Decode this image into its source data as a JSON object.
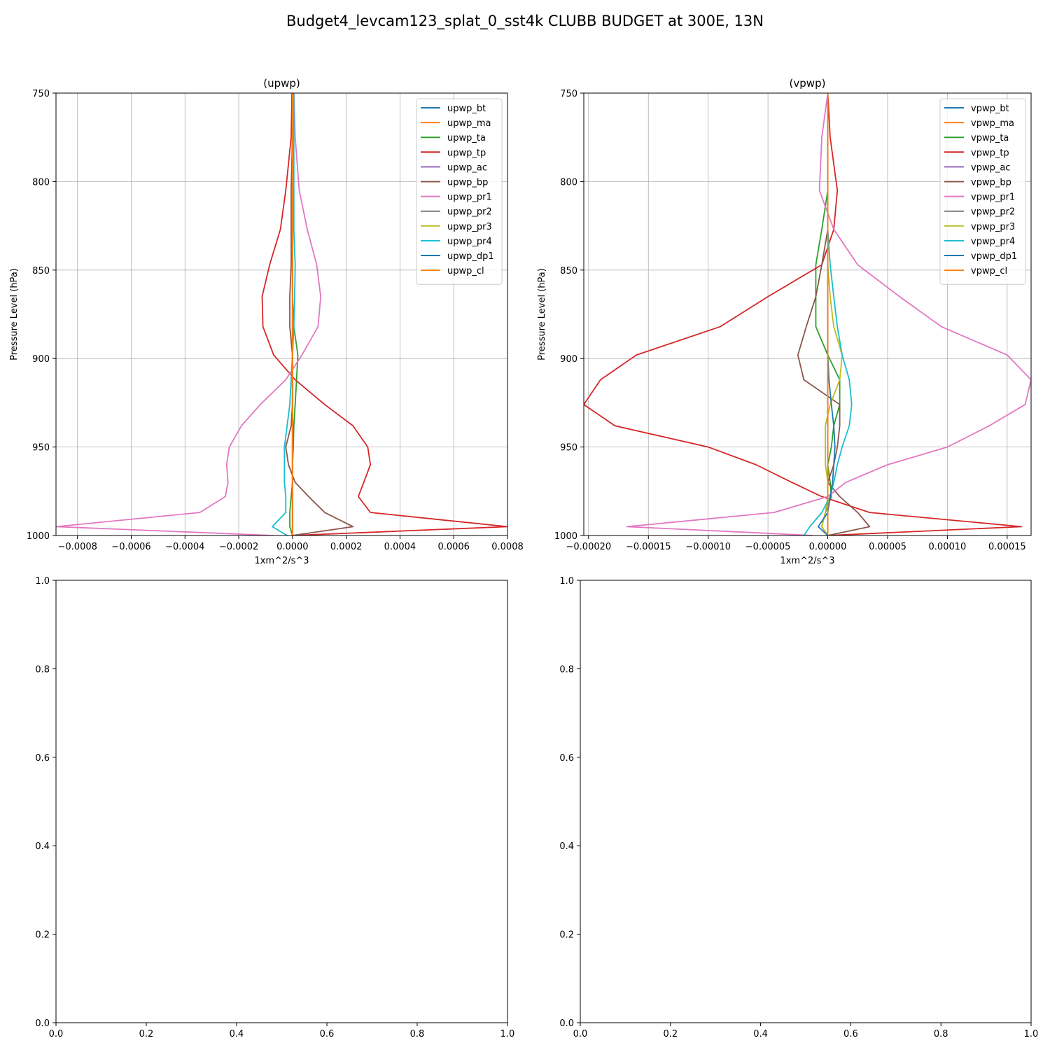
{
  "figure_title": "Budget4_levcam123_splat_0_sst4k CLUBB BUDGET at 300E, 13N",
  "colors": {
    "bt": "#1f77b4",
    "ma": "#ff7f0e",
    "ta": "#2ca02c",
    "tp": "#d62728",
    "ac": "#9467bd",
    "bp": "#8c564b",
    "pr1": "#e377c2",
    "pr2": "#7f7f7f",
    "pr3": "#bcbd22",
    "pr4": "#17becf",
    "dp1": "#1f77b4",
    "cl": "#ff7f0e"
  },
  "chart_data": [
    {
      "type": "line",
      "title": "(upwp)",
      "xlabel": "1xm^2/s^3",
      "ylabel": "Pressure Level (hPa)",
      "xlim": [
        -0.00088,
        0.0008
      ],
      "ylim": [
        1000,
        750
      ],
      "y_inverted": true,
      "grid": true,
      "legend": "top-right",
      "xticks": [
        -0.0008,
        -0.0006,
        -0.0004,
        -0.0002,
        0,
        0.0002,
        0.0004,
        0.0006,
        0.0008
      ],
      "xtick_labels": [
        "−0.0008",
        "−0.0006",
        "−0.0004",
        "−0.0002",
        "0.0000",
        "0.0002",
        "0.0004",
        "0.0006",
        "0.0008"
      ],
      "yticks": [
        750,
        800,
        850,
        900,
        950,
        1000
      ],
      "ytick_labels": [
        "750",
        "800",
        "850",
        "900",
        "950",
        "1000"
      ],
      "levels": [
        750,
        775,
        805,
        827,
        847,
        865,
        882,
        898,
        912,
        926,
        938,
        950,
        960,
        970,
        978,
        987,
        995,
        1000
      ],
      "series": [
        {
          "name": "upwp_bt",
          "color_key": "bt",
          "values": [
            0,
            0,
            0,
            0,
            0,
            0,
            0,
            0,
            0,
            0,
            0,
            0,
            0,
            0,
            0,
            0,
            0,
            0
          ]
        },
        {
          "name": "upwp_ma",
          "color_key": "ma",
          "values": [
            0,
            0,
            0,
            0,
            0,
            0,
            0,
            0,
            0,
            0,
            0,
            0,
            0,
            0,
            0,
            0,
            0,
            0
          ]
        },
        {
          "name": "upwp_ta",
          "color_key": "ta",
          "values": [
            0,
            0,
            0,
            0,
            0,
            0,
            5e-06,
            2e-05,
            1.5e-05,
            1e-05,
            5e-06,
            3e-06,
            0,
            0,
            -5e-06,
            -1e-05,
            -1e-05,
            0
          ]
        },
        {
          "name": "upwp_tp",
          "color_key": "tp",
          "values": [
            -2e-06,
            -5e-06,
            -2.5e-05,
            -4.5e-05,
            -8.5e-05,
            -0.000113,
            -0.00011,
            -7e-05,
            1e-05,
            0.00012,
            0.000225,
            0.00028,
            0.00029,
            0.000265,
            0.000245,
            0.00029,
            0.0008,
            0
          ]
        },
        {
          "name": "upwp_ac",
          "color_key": "ac",
          "values": [
            0,
            0,
            0,
            0,
            0,
            0,
            0,
            0,
            0,
            0,
            0,
            0,
            0,
            0,
            0,
            0,
            0,
            0
          ]
        },
        {
          "name": "upwp_bp",
          "color_key": "bp",
          "values": [
            0,
            0,
            -5e-06,
            -5e-06,
            -5e-06,
            -1e-05,
            -1e-05,
            0,
            0,
            0,
            -5e-06,
            -2.5e-05,
            -1.5e-05,
            1e-05,
            6e-05,
            0.00012,
            0.000225,
            0
          ]
        },
        {
          "name": "upwp_pr1",
          "color_key": "pr1",
          "values": [
            5e-06,
            1e-05,
            2.5e-05,
            5.5e-05,
            9e-05,
            0.000105,
            9.5e-05,
            3.5e-05,
            -2.5e-05,
            -0.00012,
            -0.00019,
            -0.000235,
            -0.000245,
            -0.00024,
            -0.00025,
            -0.000345,
            -0.00088,
            -7e-05
          ]
        },
        {
          "name": "upwp_pr2",
          "color_key": "pr2",
          "values": [
            0,
            0,
            0,
            0,
            0,
            0,
            0,
            0,
            0,
            0,
            0,
            0,
            0,
            0,
            0,
            0,
            0,
            0
          ]
        },
        {
          "name": "upwp_pr3",
          "color_key": "pr3",
          "values": [
            0,
            0,
            0,
            0,
            0,
            0,
            0,
            0,
            0,
            0,
            0,
            0,
            0,
            0,
            0,
            0,
            0,
            0
          ]
        },
        {
          "name": "upwp_pr4",
          "color_key": "pr4",
          "values": [
            5e-06,
            5e-06,
            5e-06,
            5e-06,
            1e-05,
            8e-06,
            5e-06,
            0,
            -5e-06,
            -1e-05,
            -2e-05,
            -3e-05,
            -3e-05,
            -3e-05,
            -2.5e-05,
            -2.5e-05,
            -7.5e-05,
            -2e-05
          ]
        },
        {
          "name": "upwp_dp1",
          "color_key": "dp1",
          "values": [
            0,
            0,
            0,
            0,
            0,
            0,
            0,
            0,
            0,
            0,
            0,
            0,
            0,
            0,
            0,
            0,
            0,
            0
          ]
        },
        {
          "name": "upwp_cl",
          "color_key": "cl",
          "values": [
            0,
            0,
            0,
            0,
            0,
            0,
            0,
            0,
            0,
            0,
            0,
            0,
            0,
            0,
            0,
            0,
            0,
            0
          ]
        }
      ]
    },
    {
      "type": "line",
      "title": "(vpwp)",
      "xlabel": "1xm^2/s^3",
      "ylabel": "Pressure Level (hPa)",
      "xlim": [
        -0.000204,
        0.00017
      ],
      "ylim": [
        1000,
        750
      ],
      "y_inverted": true,
      "grid": true,
      "legend": "top-right",
      "xticks": [
        -0.0002,
        -0.00015,
        -0.0001,
        -5e-05,
        0,
        5e-05,
        0.0001,
        0.00015
      ],
      "xtick_labels": [
        "−0.00020",
        "−0.00015",
        "−0.00010",
        "−0.00005",
        "0.00000",
        "0.00005",
        "0.00010",
        "0.00015"
      ],
      "yticks": [
        750,
        800,
        850,
        900,
        950,
        1000
      ],
      "ytick_labels": [
        "750",
        "800",
        "850",
        "900",
        "950",
        "1000"
      ],
      "levels": [
        750,
        775,
        805,
        827,
        847,
        865,
        882,
        898,
        912,
        926,
        938,
        950,
        960,
        970,
        978,
        987,
        995,
        1000
      ],
      "series": [
        {
          "name": "vpwp_bt",
          "color_key": "bt",
          "values": [
            0,
            0,
            0,
            0,
            0,
            0,
            0,
            0,
            0,
            0,
            0,
            0,
            0,
            0,
            0,
            0,
            0,
            0
          ]
        },
        {
          "name": "vpwp_ma",
          "color_key": "ma",
          "values": [
            0,
            0,
            0,
            0,
            0,
            0,
            0,
            0,
            0,
            0,
            0,
            0,
            0,
            0,
            0,
            0,
            0,
            0
          ]
        },
        {
          "name": "vpwp_ta",
          "color_key": "ta",
          "values": [
            0,
            0,
            0,
            -5e-06,
            -1e-05,
            -1e-05,
            -1e-05,
            0,
            1e-05,
            1e-05,
            5e-06,
            3e-06,
            0,
            2e-06,
            3e-06,
            -2e-06,
            -5e-06,
            0
          ]
        },
        {
          "name": "vpwp_tp",
          "color_key": "tp",
          "values": [
            0,
            2e-06,
            8e-06,
            5e-06,
            -5e-06,
            -5e-05,
            -9e-05,
            -0.00016,
            -0.00019,
            -0.000204,
            -0.000178,
            -0.0001,
            -6e-05,
            -3e-05,
            -5e-06,
            3.5e-05,
            0.000162,
            0
          ]
        },
        {
          "name": "vpwp_ac",
          "color_key": "ac",
          "values": [
            0,
            0,
            0,
            0,
            0,
            0,
            0,
            0,
            0,
            0,
            0,
            0,
            0,
            0,
            0,
            0,
            0,
            0
          ]
        },
        {
          "name": "vpwp_bp",
          "color_key": "bp",
          "values": [
            0,
            0,
            0,
            0,
            -5e-06,
            -1e-05,
            -1.8e-05,
            -2.5e-05,
            -2e-05,
            1e-05,
            1e-05,
            8e-06,
            5e-06,
            0,
            1e-05,
            2.5e-05,
            3.5e-05,
            0
          ]
        },
        {
          "name": "vpwp_pr1",
          "color_key": "pr1",
          "values": [
            0,
            -5e-06,
            -7e-06,
            5e-06,
            2.5e-05,
            6e-05,
            9.5e-05,
            0.00015,
            0.00017,
            0.000165,
            0.000135,
            0.0001,
            5e-05,
            1.5e-05,
            0,
            -4.5e-05,
            -0.000168,
            -1.2e-05
          ]
        },
        {
          "name": "vpwp_pr2",
          "color_key": "pr2",
          "values": [
            0,
            0,
            0,
            0,
            0,
            0,
            0,
            0,
            0,
            0,
            0,
            0,
            0,
            0,
            0,
            0,
            0,
            0
          ]
        },
        {
          "name": "vpwp_pr3",
          "color_key": "pr3",
          "values": [
            0,
            0,
            0,
            0,
            0,
            2e-06,
            5e-06,
            1.2e-05,
            1e-05,
            2e-06,
            -2e-06,
            -2e-06,
            -2e-06,
            0,
            0,
            -2e-06,
            -5e-06,
            0
          ]
        },
        {
          "name": "vpwp_pr4",
          "color_key": "pr4",
          "values": [
            0,
            0,
            0,
            0,
            2e-06,
            5e-06,
            8e-06,
            1.2e-05,
            1.8e-05,
            2e-05,
            1.8e-05,
            1.2e-05,
            8e-06,
            5e-06,
            2e-06,
            -5e-06,
            -1.5e-05,
            -2e-05
          ]
        },
        {
          "name": "vpwp_dp1",
          "color_key": "dp1",
          "values": [
            0,
            0,
            0,
            0,
            0,
            0,
            0,
            0,
            1e-06,
            3e-06,
            5e-06,
            6e-06,
            5e-06,
            4e-06,
            2e-06,
            0,
            -8e-06,
            0
          ]
        },
        {
          "name": "vpwp_cl",
          "color_key": "cl",
          "values": [
            0,
            0,
            0,
            0,
            0,
            0,
            0,
            0,
            0,
            0,
            0,
            0,
            0,
            0,
            0,
            0,
            0,
            0
          ]
        }
      ]
    },
    {
      "type": "line",
      "title": "",
      "xlabel": "",
      "ylabel": "",
      "xlim": [
        0,
        1
      ],
      "ylim": [
        0,
        1
      ],
      "y_inverted": false,
      "grid": false,
      "legend": "none",
      "xticks": [
        0,
        0.2,
        0.4,
        0.6,
        0.8,
        1.0
      ],
      "xtick_labels": [
        "0.0",
        "0.2",
        "0.4",
        "0.6",
        "0.8",
        "1.0"
      ],
      "yticks": [
        0,
        0.2,
        0.4,
        0.6,
        0.8,
        1.0
      ],
      "ytick_labels": [
        "0.0",
        "0.2",
        "0.4",
        "0.6",
        "0.8",
        "1.0"
      ],
      "levels": [],
      "series": []
    },
    {
      "type": "line",
      "title": "",
      "xlabel": "",
      "ylabel": "",
      "xlim": [
        0,
        1
      ],
      "ylim": [
        0,
        1
      ],
      "y_inverted": false,
      "grid": false,
      "legend": "none",
      "xticks": [
        0,
        0.2,
        0.4,
        0.6,
        0.8,
        1.0
      ],
      "xtick_labels": [
        "0.0",
        "0.2",
        "0.4",
        "0.6",
        "0.8",
        "1.0"
      ],
      "yticks": [
        0,
        0.2,
        0.4,
        0.6,
        0.8,
        1.0
      ],
      "ytick_labels": [
        "0.0",
        "0.2",
        "0.4",
        "0.6",
        "0.8",
        "1.0"
      ],
      "levels": [],
      "series": []
    }
  ]
}
